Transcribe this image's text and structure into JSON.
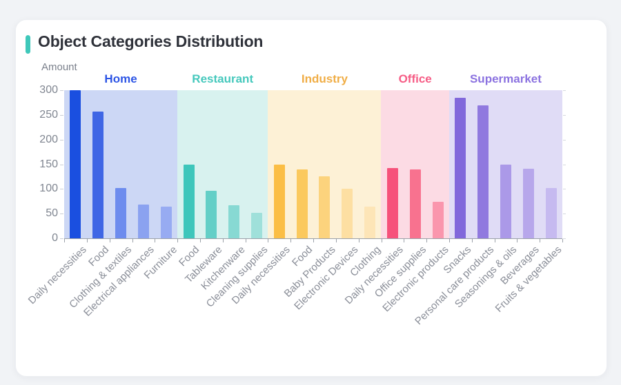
{
  "card": {
    "title": "Object Categories Distribution",
    "accent_color": "#3fc8ba"
  },
  "chart_data": {
    "type": "bar",
    "title": "Object Categories Distribution",
    "xlabel": "",
    "ylabel": "Amount",
    "ylim": [
      0,
      300
    ],
    "yticks": [
      0,
      50,
      100,
      150,
      200,
      250,
      300
    ],
    "grid": false,
    "legend_position": "none",
    "groups": [
      {
        "name": "Home",
        "label_color": "#2d55e5",
        "band_color": "#ccd7f5",
        "categories": [
          "Daily necessities",
          "Food",
          "Clothing & textiles",
          "Electrical appliances",
          "Furniture"
        ],
        "values": [
          300,
          257,
          102,
          69,
          64
        ],
        "bar_colors": [
          "#1a4fe0",
          "#3f66e5",
          "#6d8cee",
          "#8ba2f0",
          "#97abf2"
        ]
      },
      {
        "name": "Restaurant",
        "label_color": "#45c8bc",
        "band_color": "#d8f2ef",
        "categories": [
          "Food",
          "Tableware",
          "Kitchenware",
          "Cleaning supplies"
        ],
        "values": [
          150,
          97,
          67,
          52
        ],
        "bar_colors": [
          "#3ec6bb",
          "#63cfc7",
          "#87d9d3",
          "#9fe0da"
        ]
      },
      {
        "name": "Industry",
        "label_color": "#f0ad45",
        "band_color": "#fdf1d6",
        "categories": [
          "Daily necessities",
          "Food",
          "Baby Products",
          "Electronic Devices",
          "Clothing"
        ],
        "values": [
          150,
          139,
          125,
          100,
          64
        ],
        "bar_colors": [
          "#fbbe45",
          "#fbc95e",
          "#fcd37d",
          "#fddfa2",
          "#fde5b7"
        ]
      },
      {
        "name": "Office",
        "label_color": "#f65c85",
        "band_color": "#fcdbe4",
        "categories": [
          "Daily necessities",
          "Office supplies",
          "Electronic products"
        ],
        "values": [
          142,
          139,
          74
        ],
        "bar_colors": [
          "#f6527b",
          "#f8728f",
          "#fa96ad"
        ]
      },
      {
        "name": "Supermarket",
        "label_color": "#8b72e0",
        "band_color": "#e0dcf6",
        "categories": [
          "Snacks",
          "Personal care products",
          "Seasonings & oils",
          "Beverages",
          "Fruits & vegetables"
        ],
        "values": [
          285,
          270,
          149,
          141,
          102
        ],
        "bar_colors": [
          "#8168db",
          "#9079df",
          "#ab99e8",
          "#b7a7eb",
          "#c6baf0"
        ]
      }
    ]
  }
}
